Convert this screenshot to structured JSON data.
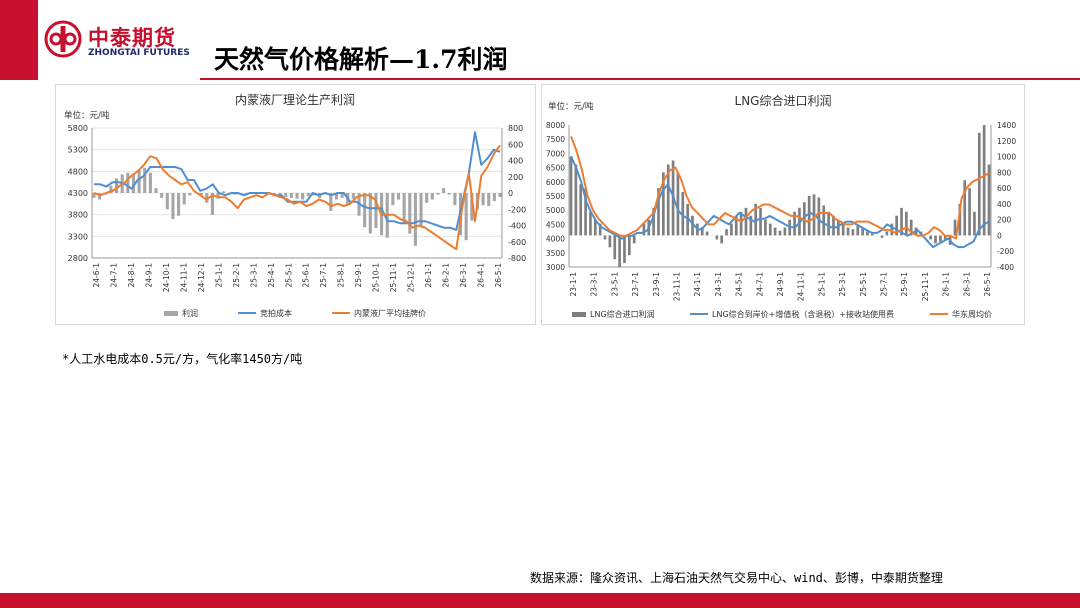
{
  "header": {
    "logo_cn": "中泰期货",
    "logo_en": "ZHONGTAI FUTURES",
    "title": "天然气价格解析—1.7利润",
    "brand_color": "#c8102e"
  },
  "chart_data": [
    {
      "type": "bar+line",
      "title": "内蒙液厂理论生产利润",
      "unit_label": "单位：元/吨",
      "ylim_left": [
        2800,
        5800
      ],
      "yticks_left": [
        "5800",
        "5300",
        "4800",
        "4300",
        "3800",
        "3300",
        "2800"
      ],
      "ylim_right": [
        -800,
        800
      ],
      "yticks_right": [
        "800",
        "600",
        "400",
        "200",
        "0",
        "-200",
        "-400",
        "-600",
        "-800"
      ],
      "x_tick_labels": [
        "24-6-1",
        "24-7-1",
        "24-8-1",
        "24-9-1",
        "24-10-1",
        "24-11-1",
        "24-12-1",
        "25-1-1",
        "25-2-1",
        "25-3-1",
        "25-4-1",
        "25-5-1",
        "25-6-1",
        "25-7-1",
        "25-8-1",
        "25-9-1",
        "25-10-1",
        "25-11-1",
        "25-12-1",
        "26-1-1",
        "26-2-1",
        "26-3-1",
        "26-4-1",
        "26-5-1"
      ],
      "grid": true,
      "legend_position": "bottom",
      "series": [
        {
          "name": "利润",
          "type": "bar",
          "axis": "right",
          "color": "#a6a6a6",
          "values": [
            -60,
            -80,
            -20,
            90,
            180,
            230,
            250,
            240,
            280,
            310,
            250,
            60,
            -60,
            -200,
            -320,
            -280,
            -140,
            -30,
            0,
            -40,
            -120,
            -270,
            -70,
            20,
            0,
            -20,
            -10,
            -20,
            0,
            10,
            0,
            -20,
            -40,
            -60,
            -50,
            -60,
            -70,
            -80,
            -40,
            -30,
            -60,
            -10,
            -220,
            -80,
            -60,
            -140,
            -70,
            -280,
            -420,
            -500,
            -430,
            -520,
            -550,
            -150,
            -80,
            -380,
            -500,
            -650,
            -420,
            -120,
            -80,
            -20,
            60,
            -20,
            -150,
            -520,
            -580,
            -340,
            -200,
            -150,
            -160,
            -100,
            -50
          ]
        },
        {
          "name": "竞拍成本",
          "type": "line",
          "axis": "left",
          "color": "#4f8fcf",
          "values": [
            4500,
            4500,
            4450,
            4550,
            4550,
            4500,
            4400,
            4600,
            4700,
            4900,
            4900,
            4900,
            4900,
            4900,
            4850,
            4600,
            4600,
            4350,
            4400,
            4500,
            4300,
            4250,
            4300,
            4300,
            4250,
            4300,
            4300,
            4300,
            4300,
            4250,
            4250,
            4100,
            4100,
            4100,
            4100,
            4300,
            4250,
            4300,
            4250,
            4300,
            4300,
            4100,
            4100,
            4000,
            3950,
            3950,
            3950,
            3650,
            3650,
            3600,
            3600,
            3600,
            3650,
            3650,
            3600,
            3550,
            3500,
            3500,
            3450,
            4100,
            4750,
            5700,
            4950,
            5100,
            5300,
            5250
          ]
        },
        {
          "name": "内蒙液厂平均挂牌价",
          "type": "line",
          "axis": "left",
          "color": "#ed7d31",
          "values": [
            4300,
            4250,
            4300,
            4350,
            4450,
            4550,
            4700,
            4800,
            4950,
            5150,
            5100,
            4850,
            4700,
            4600,
            4500,
            4550,
            4350,
            4250,
            4150,
            4250,
            4200,
            4200,
            4100,
            3950,
            4150,
            4200,
            4250,
            4200,
            4300,
            4250,
            4200,
            4150,
            4050,
            4100,
            4000,
            4050,
            4150,
            4100,
            4000,
            4050,
            4000,
            4050,
            4200,
            4250,
            4250,
            4150,
            3800,
            3800,
            3800,
            3700,
            3650,
            3500,
            3550,
            3500,
            3400,
            3300,
            3200,
            3100,
            3000,
            4000,
            4750,
            3650,
            4700,
            4900,
            5200,
            5400
          ]
        }
      ]
    },
    {
      "type": "bar+line",
      "title": "LNG综合进口利润",
      "unit_label": "单位：元/吨",
      "ylim_left": [
        3000,
        8000
      ],
      "yticks_left": [
        "8000",
        "7500",
        "7000",
        "6500",
        "6000",
        "5500",
        "5000",
        "4500",
        "4000",
        "3500",
        "3000"
      ],
      "ylim_right": [
        -400,
        1400
      ],
      "yticks_right": [
        "1400",
        "1200",
        "1000",
        "800",
        "600",
        "400",
        "200",
        "0",
        "-200",
        "-400"
      ],
      "x_tick_labels": [
        "23-1-1",
        "23-3-1",
        "23-5-1",
        "23-7-1",
        "23-9-1",
        "23-11-1",
        "24-1-1",
        "24-3-1",
        "24-5-1",
        "24-7-1",
        "24-9-1",
        "24-11-1",
        "25-1-1",
        "25-3-1",
        "25-5-1",
        "25-7-1",
        "25-9-1",
        "25-11-1",
        "26-1-1",
        "26-3-1",
        "26-5-1"
      ],
      "grid": false,
      "legend_position": "bottom",
      "series": [
        {
          "name": "LNG综合进口利润",
          "type": "bar",
          "axis": "right",
          "color": "#7f7f7f",
          "values": [
            1000,
            900,
            650,
            600,
            300,
            200,
            150,
            -50,
            -150,
            -300,
            -400,
            -350,
            -250,
            -100,
            0,
            150,
            200,
            350,
            600,
            800,
            900,
            950,
            800,
            550,
            400,
            250,
            150,
            100,
            50,
            0,
            -50,
            -100,
            80,
            150,
            250,
            300,
            350,
            250,
            400,
            350,
            200,
            150,
            100,
            60,
            100,
            200,
            300,
            350,
            420,
            500,
            520,
            480,
            380,
            300,
            250,
            200,
            150,
            100,
            80,
            120,
            100,
            50,
            20,
            0,
            -30,
            50,
            150,
            250,
            350,
            300,
            200,
            100,
            50,
            0,
            -50,
            -100,
            -80,
            -50,
            -120,
            200,
            400,
            700,
            600,
            300,
            1300,
            1400,
            900
          ]
        },
        {
          "name": "LNG综合到岸价+增值税（含退税）+接收站使用费",
          "type": "line",
          "axis": "left",
          "color": "#4f8fcf",
          "values": [
            6900,
            6500,
            6000,
            5300,
            4900,
            4600,
            4400,
            4300,
            4200,
            4100,
            4000,
            4100,
            4100,
            4200,
            4200,
            4300,
            4700,
            5300,
            5700,
            5900,
            5500,
            5000,
            4800,
            4700,
            4500,
            4300,
            4400,
            4600,
            4800,
            4700,
            4600,
            4500,
            4700,
            4900,
            4800,
            4700,
            4600,
            4700,
            4700,
            4800,
            4700,
            4600,
            4500,
            4400,
            4400,
            4600,
            4800,
            4900,
            4800,
            4600,
            4500,
            4400,
            4400,
            4500,
            4600,
            4600,
            4500,
            4400,
            4300,
            4200,
            4200,
            4300,
            4500,
            4400,
            4300,
            4200,
            4100,
            4200,
            4300,
            4100,
            3900,
            3700,
            3800,
            3900,
            4000,
            3800,
            3700,
            3700,
            3800,
            3900,
            4300,
            4500,
            4600
          ]
        },
        {
          "name": "华东周均价",
          "type": "line",
          "axis": "left",
          "color": "#ed7d31",
          "values": [
            7600,
            7100,
            6400,
            5500,
            5000,
            4700,
            4500,
            4300,
            4200,
            4100,
            4100,
            4200,
            4300,
            4500,
            4700,
            4900,
            5600,
            6100,
            6400,
            6500,
            6100,
            5500,
            5100,
            4900,
            4700,
            4500,
            4500,
            4700,
            4900,
            4800,
            4700,
            4600,
            4800,
            5000,
            5100,
            5200,
            5200,
            5100,
            5000,
            4900,
            4800,
            4800,
            4700,
            4600,
            4700,
            4900,
            4900,
            4900,
            4700,
            4600,
            4500,
            4500,
            4600,
            4600,
            4600,
            4500,
            4400,
            4300,
            4300,
            4200,
            4300,
            4400,
            4200,
            4100,
            4100,
            4200,
            4400,
            4300,
            4100,
            4100,
            4000,
            5400,
            5800,
            6000,
            6100,
            6200,
            6300
          ]
        }
      ]
    }
  ],
  "note": "*人工水电成本0.5元/方，气化率1450方/吨",
  "source": "数据来源：隆众资讯、上海石油天然气交易中心、wind、彭博，中泰期货整理"
}
